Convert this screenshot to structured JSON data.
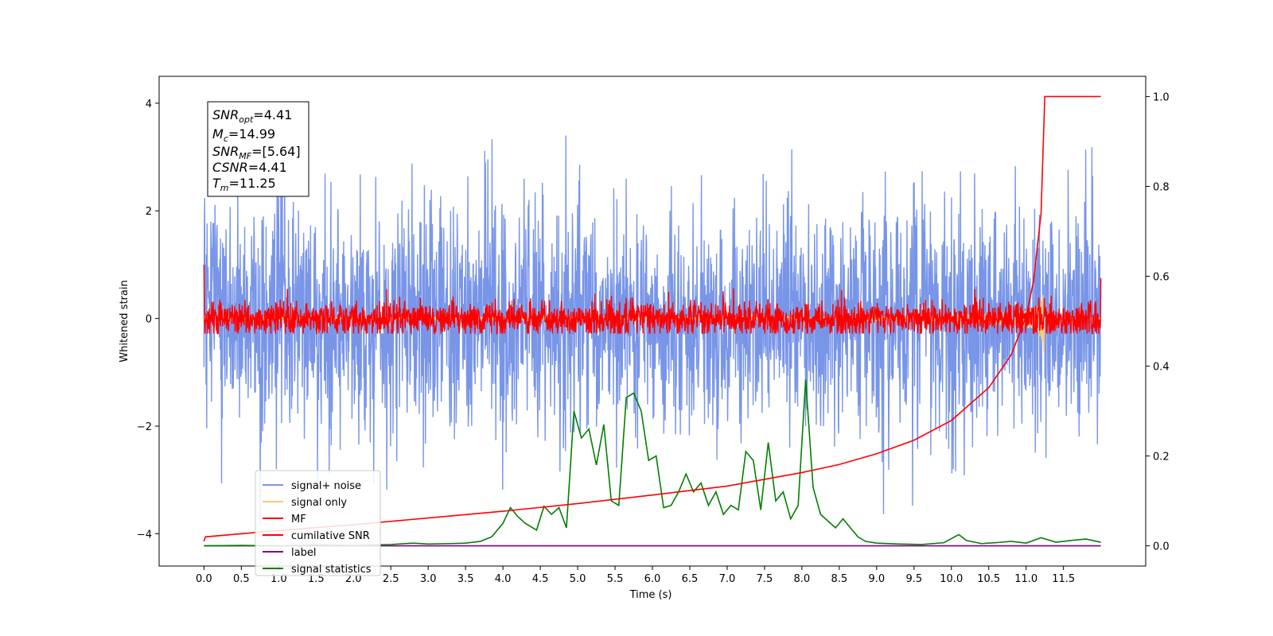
{
  "chart_data": {
    "type": "line",
    "xlabel": "Time (s)",
    "ylabel": "Whitened strain",
    "xlim": [
      -0.6,
      12.6
    ],
    "ylim": [
      -4.6,
      4.5
    ],
    "y2lim": [
      -0.045,
      1.045
    ],
    "x_ticks": [
      0.0,
      0.5,
      1.0,
      1.5,
      2.0,
      2.5,
      3.0,
      3.5,
      4.0,
      4.5,
      5.0,
      5.5,
      6.0,
      6.5,
      7.0,
      7.5,
      8.0,
      8.5,
      9.0,
      9.5,
      10.0,
      10.5,
      11.0,
      11.5
    ],
    "x_tick_labels": [
      "0.0",
      "0.5",
      "1.0",
      "1.5",
      "2.0",
      "2.5",
      "3.0",
      "3.5",
      "4.0",
      "4.5",
      "5.0",
      "5.5",
      "6.0",
      "6.5",
      "7.0",
      "7.5",
      "8.0",
      "8.5",
      "9.0",
      "9.5",
      "10.0",
      "10.5",
      "11.0",
      "11.5"
    ],
    "y_ticks": [
      -4,
      -2,
      0,
      2,
      4
    ],
    "y_tick_labels": [
      "−4",
      "−2",
      "0",
      "2",
      "4"
    ],
    "y2_ticks": [
      0.0,
      0.2,
      0.4,
      0.6,
      0.8,
      1.0
    ],
    "y2_tick_labels": [
      "0.0",
      "0.2",
      "0.4",
      "0.6",
      "0.8",
      "1.0"
    ],
    "grid": false,
    "legend_placement": "lower-left",
    "info_box": {
      "snr_opt": {
        "main": "SNR",
        "sub": "opt",
        "value": "=4.41"
      },
      "mc": {
        "main": "M",
        "sub": "c",
        "value": "=14.99"
      },
      "snr_mf": {
        "main": "SNR",
        "sub": "MF",
        "value": "=[5.64]"
      },
      "csnr": {
        "main": "CSNR",
        "sub": "",
        "value": "=4.41"
      },
      "tm": {
        "main": "T",
        "sub": "m",
        "value": "=11.25"
      }
    },
    "series": [
      {
        "name": "signal+ noise",
        "axis": "left",
        "color": "#7895e8",
        "description": "noisy strain, approx. range -3.8 to 4.1, sd ~1.0",
        "t_range": [
          0.0,
          12.0
        ]
      },
      {
        "name": "signal only",
        "axis": "left",
        "color": "#f5c87a",
        "description": "chirp, near zero until ~10.9 s, peak amplitude ~0.8 at 11.25 s",
        "t_range": [
          0.0,
          12.0
        ]
      },
      {
        "name": "MF",
        "axis": "left",
        "color": "#ff0000",
        "description": "matched filter output, approx. range -0.3 to 1.0",
        "t_range": [
          0.0,
          12.0
        ]
      },
      {
        "name": "cumilative SNR",
        "axis": "right",
        "color": "#ff0000",
        "x": [
          0.0,
          0.02,
          1.0,
          2.0,
          3.0,
          4.0,
          5.0,
          6.0,
          7.0,
          8.0,
          8.5,
          9.0,
          9.5,
          10.0,
          10.5,
          10.8,
          11.0,
          11.1,
          11.2,
          11.25,
          12.0
        ],
        "values": [
          0.01,
          0.02,
          0.034,
          0.047,
          0.062,
          0.077,
          0.094,
          0.113,
          0.133,
          0.163,
          0.181,
          0.205,
          0.235,
          0.279,
          0.352,
          0.425,
          0.51,
          0.59,
          0.74,
          1.0,
          1.0
        ]
      },
      {
        "name": "label",
        "axis": "right",
        "color": "#800080",
        "x": [
          0.0,
          12.0
        ],
        "values": [
          0.0,
          0.0
        ]
      },
      {
        "name": "signal statistics",
        "axis": "right",
        "color": "#008000",
        "x": [
          0.0,
          0.5,
          1.0,
          1.5,
          2.0,
          2.5,
          2.8,
          3.0,
          3.3,
          3.5,
          3.7,
          3.85,
          4.0,
          4.1,
          4.2,
          4.3,
          4.45,
          4.55,
          4.65,
          4.75,
          4.85,
          4.95,
          5.05,
          5.15,
          5.25,
          5.35,
          5.45,
          5.55,
          5.65,
          5.75,
          5.85,
          5.95,
          6.05,
          6.15,
          6.25,
          6.35,
          6.45,
          6.55,
          6.65,
          6.75,
          6.85,
          6.95,
          7.05,
          7.15,
          7.25,
          7.35,
          7.45,
          7.55,
          7.65,
          7.75,
          7.85,
          7.95,
          8.05,
          8.15,
          8.25,
          8.35,
          8.45,
          8.55,
          8.65,
          8.75,
          8.85,
          9.0,
          9.3,
          9.6,
          9.9,
          10.1,
          10.2,
          10.4,
          10.6,
          10.8,
          11.0,
          11.2,
          11.4,
          11.6,
          11.8,
          12.0
        ],
        "values": [
          0.0,
          0.001,
          0.0,
          0.002,
          0.001,
          0.003,
          0.006,
          0.004,
          0.005,
          0.006,
          0.01,
          0.02,
          0.05,
          0.085,
          0.065,
          0.05,
          0.035,
          0.088,
          0.07,
          0.085,
          0.04,
          0.3,
          0.24,
          0.26,
          0.18,
          0.27,
          0.1,
          0.09,
          0.33,
          0.34,
          0.3,
          0.19,
          0.2,
          0.085,
          0.09,
          0.12,
          0.16,
          0.12,
          0.14,
          0.09,
          0.12,
          0.07,
          0.09,
          0.08,
          0.21,
          0.19,
          0.08,
          0.23,
          0.1,
          0.12,
          0.06,
          0.09,
          0.37,
          0.13,
          0.07,
          0.055,
          0.04,
          0.06,
          0.04,
          0.02,
          0.01,
          0.006,
          0.004,
          0.003,
          0.007,
          0.025,
          0.012,
          0.005,
          0.007,
          0.01,
          0.006,
          0.018,
          0.008,
          0.012,
          0.015,
          0.008
        ]
      }
    ]
  }
}
